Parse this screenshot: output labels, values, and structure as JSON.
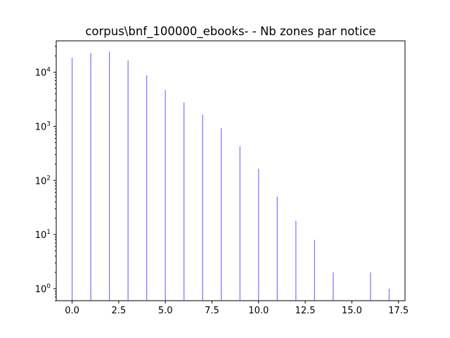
{
  "chart_data": {
    "type": "bar",
    "title": "corpus\\bnf_100000_ebooks- - Nb zones par notice",
    "xlabel": "",
    "ylabel": "",
    "yscale": "log",
    "xlim": [
      -0.85,
      17.85
    ],
    "ylim": [
      0.6,
      38000
    ],
    "color": "#0000ff",
    "grid": false,
    "x": [
      0,
      1,
      2,
      3,
      4,
      5,
      6,
      7,
      8,
      9,
      10,
      11,
      12,
      13,
      14,
      15,
      16,
      17
    ],
    "values": [
      18500,
      22500,
      24000,
      16500,
      8700,
      4700,
      2750,
      1650,
      920,
      430,
      165,
      50,
      18,
      8,
      2,
      0,
      2,
      1
    ],
    "x_ticks": [
      0.0,
      2.5,
      5.0,
      7.5,
      10.0,
      12.5,
      15.0,
      17.5
    ],
    "x_tick_labels": [
      "0.0",
      "2.5",
      "5.0",
      "7.5",
      "10.0",
      "12.5",
      "15.0",
      "17.5"
    ],
    "y_ticks": [
      1,
      10,
      100,
      1000,
      10000
    ],
    "y_tick_bases": [
      "10",
      "10",
      "10",
      "10",
      "10"
    ],
    "y_tick_exponents": [
      "0",
      "1",
      "2",
      "3",
      "4"
    ]
  }
}
